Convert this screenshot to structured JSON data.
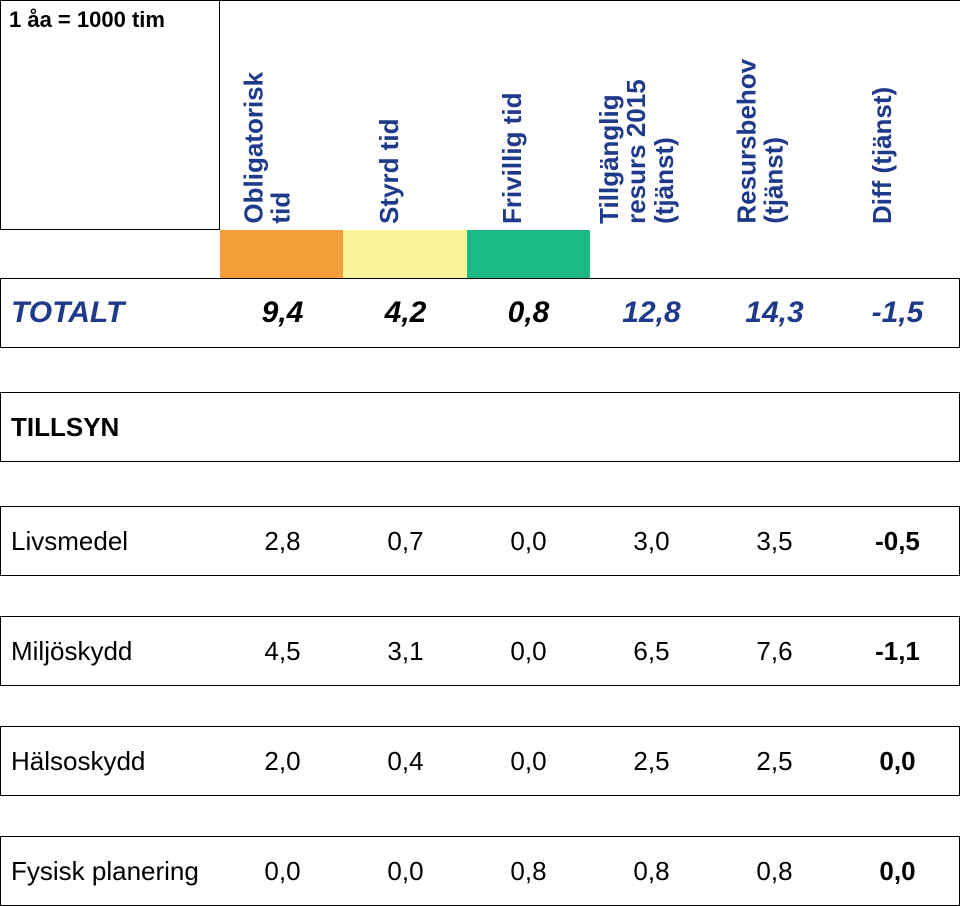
{
  "colors": {
    "header_text": "#1f3a8a",
    "orange": "#f59f3a",
    "yellow": "#f9f39a",
    "green": "#1bb985",
    "white": "#ffffff",
    "black": "#000000"
  },
  "unit_label": "1 åa = 1000 tim",
  "columns": [
    {
      "label": "Obligatorisk\ntid",
      "two_line": true
    },
    {
      "label": "Styrd tid",
      "two_line": false
    },
    {
      "label": "Frivillig tid",
      "two_line": false
    },
    {
      "label": "Tillgänglig\nresurs 2015\n(tjänst)",
      "two_line": true
    },
    {
      "label": "Resursbehov\n(tjänst)",
      "two_line": true
    },
    {
      "label": "Diff (tjänst)",
      "two_line": false
    }
  ],
  "band_colors": [
    "orange",
    "yellow",
    "green",
    "white",
    "white",
    "white"
  ],
  "rows": [
    {
      "kind": "data",
      "class": "totalt",
      "label": "TOTALT",
      "label_color": "header_text",
      "cells": [
        "9,4",
        "4,2",
        "0,8",
        "12,8",
        "14,3",
        "-1,5"
      ],
      "cell_colors": [
        "black",
        "black",
        "black",
        "header_text",
        "header_text",
        "header_text"
      ]
    },
    {
      "kind": "gap"
    },
    {
      "kind": "data",
      "class": "tillsyn",
      "label": "TILLSYN",
      "label_color": "black",
      "cells": [
        "",
        "",
        "",
        "",
        "",
        ""
      ],
      "cell_colors": [
        "black",
        "black",
        "black",
        "black",
        "black",
        "black"
      ]
    },
    {
      "kind": "gap"
    },
    {
      "kind": "data",
      "class": "",
      "label": "Livsmedel",
      "label_color": "black",
      "cells": [
        "2,8",
        "0,7",
        "0,0",
        "3,0",
        "3,5",
        "-0,5"
      ],
      "cell_colors": [
        "black",
        "black",
        "black",
        "black",
        "black",
        "black"
      ],
      "bold_last": true
    },
    {
      "kind": "gap-small"
    },
    {
      "kind": "data",
      "class": "",
      "label": "Miljöskydd",
      "label_color": "black",
      "cells": [
        "4,5",
        "3,1",
        "0,0",
        "6,5",
        "7,6",
        "-1,1"
      ],
      "cell_colors": [
        "black",
        "black",
        "black",
        "black",
        "black",
        "black"
      ],
      "bold_last": true
    },
    {
      "kind": "gap-small"
    },
    {
      "kind": "data",
      "class": "",
      "label": "Hälsoskydd",
      "label_color": "black",
      "cells": [
        "2,0",
        "0,4",
        "0,0",
        "2,5",
        "2,5",
        "0,0"
      ],
      "cell_colors": [
        "black",
        "black",
        "black",
        "black",
        "black",
        "black"
      ],
      "bold_last": true
    },
    {
      "kind": "gap-small"
    },
    {
      "kind": "data",
      "class": "",
      "label": "Fysisk planering",
      "label_color": "black",
      "cells": [
        "0,0",
        "0,0",
        "0,8",
        "0,8",
        "0,8",
        "0,0"
      ],
      "cell_colors": [
        "black",
        "black",
        "black",
        "black",
        "black",
        "black"
      ],
      "bold_last": true
    }
  ]
}
